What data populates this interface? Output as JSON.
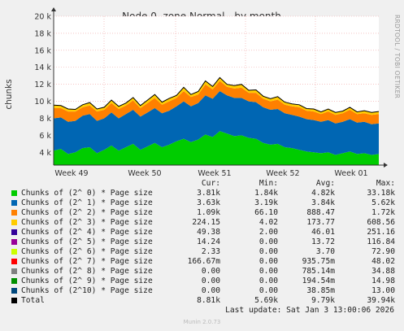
{
  "chart_data": {
    "type": "area",
    "title": "Node 0, zone Normal - by month",
    "ylabel": "chunks",
    "y_ticks": [
      "4 k",
      "6 k",
      "8 k",
      "10 k",
      "12 k",
      "14 k",
      "16 k",
      "18 k",
      "20 k"
    ],
    "y_tick_values": [
      4000,
      6000,
      8000,
      10000,
      12000,
      14000,
      16000,
      18000,
      20000
    ],
    "ylim": [
      2500,
      20000
    ],
    "x_ticks": [
      "Week 49",
      "Week 50",
      "Week 51",
      "Week 52",
      "Week 01"
    ],
    "grid": true,
    "series_colors": [
      "#00cc00",
      "#0066b3",
      "#ff8000",
      "#ffcc00",
      "#330099",
      "#990099",
      "#ccff00",
      "#ff0000",
      "#808080",
      "#008f00",
      "#00487d",
      "#000000"
    ],
    "table_headers": [
      "Cur:",
      "Min:",
      "Avg:",
      "Max:"
    ],
    "series": [
      {
        "name": "Chunks of (2^ 0) * Page size",
        "color": "#00cc00",
        "cur": "3.81k",
        "min": "1.84k",
        "avg": "4.82k",
        "max": "33.18k"
      },
      {
        "name": "Chunks of (2^ 1) * Page size",
        "color": "#0066b3",
        "cur": "3.63k",
        "min": "3.19k",
        "avg": "3.84k",
        "max": "5.62k"
      },
      {
        "name": "Chunks of (2^ 2) * Page size",
        "color": "#ff8000",
        "cur": "1.09k",
        "min": "66.10",
        "avg": "888.47",
        "max": "1.72k"
      },
      {
        "name": "Chunks of (2^ 3) * Page size",
        "color": "#ffcc00",
        "cur": "224.15",
        "min": "4.02",
        "avg": "173.77",
        "max": "608.56"
      },
      {
        "name": "Chunks of (2^ 4) * Page size",
        "color": "#330099",
        "cur": "49.38",
        "min": "2.00",
        "avg": "46.01",
        "max": "251.16"
      },
      {
        "name": "Chunks of (2^ 5) * Page size",
        "color": "#990099",
        "cur": "14.24",
        "min": "0.00",
        "avg": "13.72",
        "max": "116.84"
      },
      {
        "name": "Chunks of (2^ 6) * Page size",
        "color": "#ccff00",
        "cur": "2.33",
        "min": "0.00",
        "avg": "3.70",
        "max": "72.90"
      },
      {
        "name": "Chunks of (2^ 7) * Page size",
        "color": "#ff0000",
        "cur": "166.67m",
        "min": "0.00",
        "avg": "935.75m",
        "max": "48.02"
      },
      {
        "name": "Chunks of (2^ 8) * Page size",
        "color": "#808080",
        "cur": "0.00",
        "min": "0.00",
        "avg": "785.14m",
        "max": "34.88"
      },
      {
        "name": "Chunks of (2^ 9) * Page size",
        "color": "#008f00",
        "cur": "0.00",
        "min": "0.00",
        "avg": "194.54m",
        "max": "14.98"
      },
      {
        "name": "Chunks of (2^10) * Page size",
        "color": "#00487d",
        "cur": "0.00",
        "min": "0.00",
        "avg": "38.85m",
        "max": "13.00"
      },
      {
        "name": "Total",
        "color": "#000000",
        "cur": "8.81k",
        "min": "5.69k",
        "avg": "9.79k",
        "max": "39.94k"
      }
    ],
    "stack_profile": {
      "green_k": [
        4.2,
        4.4,
        3.8,
        4.0,
        4.5,
        4.6,
        3.9,
        4.3,
        4.8,
        4.2,
        4.6,
        5.0,
        4.3,
        4.7,
        5.1,
        4.6,
        4.9,
        5.3,
        5.6,
        5.2,
        5.5,
        6.1,
        5.8,
        6.5,
        6.2,
        5.9,
        6.0,
        5.7,
        5.6,
        5.1,
        4.9,
        5.0,
        4.6,
        4.5,
        4.3,
        4.1,
        4.0,
        3.9,
        4.0,
        3.7,
        3.9,
        4.1,
        3.8,
        3.9,
        3.7,
        3.8
      ],
      "blue_k": [
        3.8,
        3.7,
        3.8,
        3.7,
        3.8,
        3.9,
        3.8,
        3.7,
        3.9,
        3.8,
        3.9,
        4.0,
        3.9,
        4.0,
        4.1,
        4.0,
        4.0,
        4.1,
        4.4,
        4.2,
        4.3,
        4.6,
        4.5,
        4.7,
        4.5,
        4.5,
        4.4,
        4.3,
        4.3,
        4.2,
        4.1,
        4.1,
        4.0,
        3.9,
        3.9,
        3.8,
        3.8,
        3.7,
        3.8,
        3.7,
        3.7,
        3.8,
        3.7,
        3.7,
        3.6,
        3.6
      ],
      "orange_k": [
        1.2,
        1.1,
        1.2,
        1.1,
        1.0,
        1.0,
        1.1,
        1.0,
        1.1,
        1.1,
        1.0,
        1.1,
        1.0,
        1.1,
        1.2,
        1.0,
        1.1,
        1.0,
        1.2,
        1.1,
        1.0,
        1.3,
        1.1,
        1.2,
        1.0,
        1.1,
        1.2,
        1.0,
        1.1,
        1.0,
        1.0,
        1.1,
        1.0,
        1.0,
        1.1,
        1.0,
        1.0,
        0.9,
        1.0,
        1.0,
        1.0,
        1.1,
        1.0,
        1.0,
        1.1,
        1.1
      ],
      "rest_k": [
        0.35,
        0.3,
        0.3,
        0.25,
        0.3,
        0.35,
        0.3,
        0.3,
        0.35,
        0.3,
        0.3,
        0.35,
        0.3,
        0.35,
        0.4,
        0.3,
        0.35,
        0.3,
        0.45,
        0.3,
        0.35,
        0.4,
        0.35,
        0.4,
        0.3,
        0.35,
        0.4,
        0.3,
        0.35,
        0.3,
        0.3,
        0.35,
        0.3,
        0.3,
        0.3,
        0.25,
        0.3,
        0.25,
        0.3,
        0.3,
        0.25,
        0.3,
        0.25,
        0.3,
        0.3,
        0.3
      ]
    }
  },
  "side_label": "RRDTOOL / TOBI OETIKER",
  "footer": {
    "updated": "Last update: Sat Jan  3 13:00:06 2026",
    "munin": "Munin 2.0.73"
  }
}
